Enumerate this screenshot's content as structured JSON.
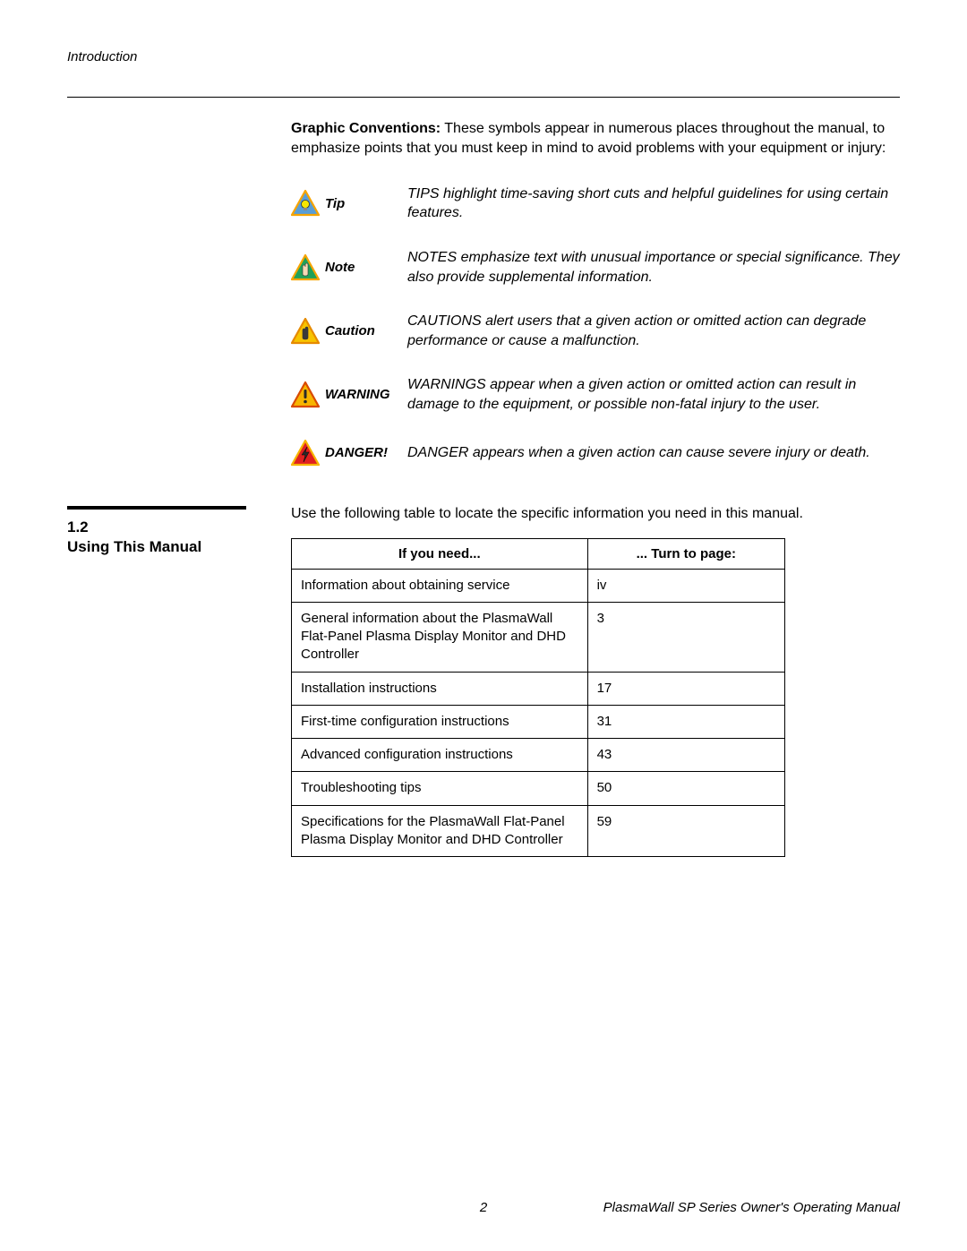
{
  "header": {
    "section": "Introduction"
  },
  "intro": {
    "bold": "Graphic Conventions:",
    "rest": " These symbols appear in numerous places throughout the manual, to emphasize points that you must keep in mind to avoid problems with your equipment or injury:"
  },
  "conventions": [
    {
      "label": "Tip",
      "desc": "TIPS highlight time-saving short cuts and helpful guidelines for using certain features.",
      "icon": {
        "fill": "#5a9ed6",
        "stroke": "#f7a400",
        "glyph": "bulb",
        "glyphColor": "#f7e600"
      }
    },
    {
      "label": "Note",
      "desc": "NOTES emphasize text with unusual importance or special significance. They also provide supplemental information.",
      "icon": {
        "fill": "#1fa05a",
        "stroke": "#f7a400",
        "glyph": "hand",
        "glyphColor": "#f5d9b5"
      }
    },
    {
      "label": "Caution",
      "desc": "CAUTIONS alert users that a given action or omitted action can degrade performance or cause a malfunction.",
      "icon": {
        "fill": "#f7c400",
        "stroke": "#e68a00",
        "glyph": "hand",
        "glyphColor": "#3a3a3a"
      }
    },
    {
      "label": "WARNING",
      "desc": "WARNINGS appear when a given action or omitted action can result in damage to the equipment, or possible non-fatal injury to the user.",
      "icon": {
        "fill": "#f7b500",
        "stroke": "#d94a00",
        "glyph": "excl",
        "glyphColor": "#2a2a2a"
      }
    },
    {
      "label": "DANGER!",
      "desc": "DANGER appears when a given action can cause severe injury or death.",
      "icon": {
        "fill": "#e02020",
        "stroke": "#f7b500",
        "glyph": "bolt",
        "glyphColor": "#2a2a2a"
      }
    }
  ],
  "section": {
    "number": "1.2",
    "title": "Using This Manual",
    "intro": "Use the following table to locate the specific information you need in this manual."
  },
  "table": {
    "col1": "If you need...",
    "col2": "... Turn to page:",
    "rows": [
      {
        "need": "Information about obtaining service",
        "page": "iv"
      },
      {
        "need": "General information about the PlasmaWall Flat-Panel Plasma Display Monitor and DHD Controller",
        "page": "3"
      },
      {
        "need": "Installation instructions",
        "page": "17"
      },
      {
        "need": "First-time configuration instructions",
        "page": "31"
      },
      {
        "need": "Advanced configuration instructions",
        "page": "43"
      },
      {
        "need": "Troubleshooting tips",
        "page": "50"
      },
      {
        "need": "Specifications for the PlasmaWall Flat-Panel Plasma Display Monitor and DHD Controller",
        "page": "59"
      }
    ]
  },
  "footer": {
    "page": "2",
    "source": "PlasmaWall SP Series Owner's Operating Manual"
  }
}
